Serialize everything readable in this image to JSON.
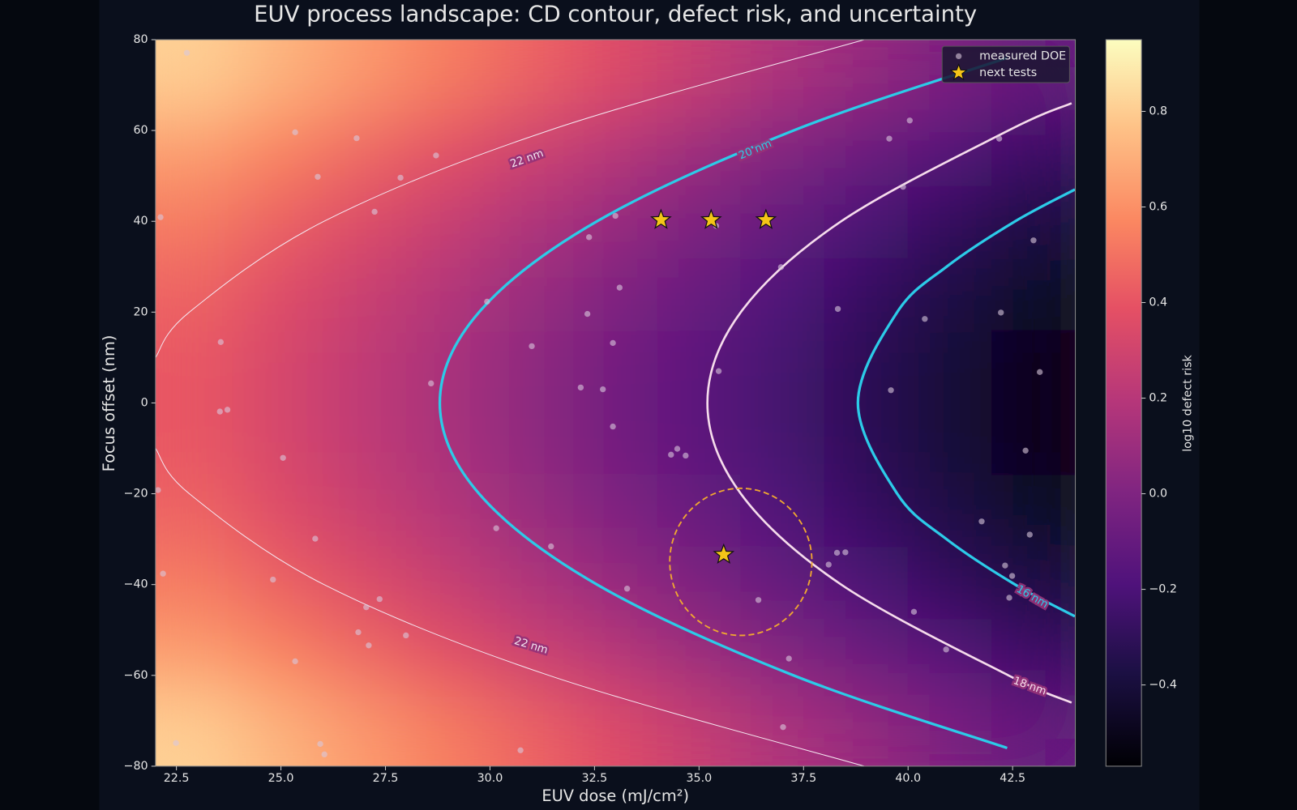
{
  "chart_data": {
    "type": "contour",
    "title": "EUV process landscape: CD contour, defect risk, and uncertainty",
    "x_label": "EUV dose (mJ/cm²)",
    "y_label": "Focus offset (nm)",
    "xlim": [
      22,
      44
    ],
    "ylim": [
      -80,
      80
    ],
    "xticks": [
      22.5,
      {
        "value": 25,
        "label": "25.0"
      },
      27.5,
      {
        "value": 30,
        "label": "30.0"
      },
      32.5,
      {
        "value": 35,
        "label": "35.0"
      },
      37.5,
      {
        "value": 40,
        "label": "40.0"
      },
      42.5
    ],
    "yticks": [
      {
        "value": -80,
        "label": "−80"
      },
      {
        "value": -60,
        "label": "−60"
      },
      {
        "value": -40,
        "label": "−40"
      },
      {
        "value": -20,
        "label": "−20"
      },
      0,
      20,
      40,
      60,
      80
    ],
    "colormap": "magma",
    "colorbar_label": "log10 defect risk",
    "clim": [
      -0.57,
      0.95
    ],
    "colorbar_ticks": [
      {
        "value": -0.4,
        "label": "−0.4"
      },
      {
        "value": -0.2,
        "label": "−0.2"
      },
      {
        "value": 0,
        "label": "0.0"
      },
      0.2,
      0.4,
      0.6,
      0.8
    ],
    "field": {
      "x": [
        23,
        25,
        27,
        29,
        31,
        33,
        35,
        37,
        39,
        41,
        43
      ],
      "y": [
        72,
        56,
        40,
        24,
        8,
        -8,
        -24,
        -40,
        -56,
        -72
      ],
      "z": [
        [
          0.81,
          0.72,
          0.63,
          0.54,
          0.45,
          0.36,
          0.26,
          0.17,
          0.08,
          -0.01,
          -0.1
        ],
        [
          0.65,
          0.56,
          0.47,
          0.38,
          0.29,
          0.2,
          0.1,
          0.01,
          -0.08,
          -0.17,
          -0.26
        ],
        [
          0.53,
          0.44,
          0.35,
          0.26,
          0.17,
          0.08,
          -0.02,
          -0.11,
          -0.2,
          -0.29,
          -0.38
        ],
        [
          0.45,
          0.36,
          0.27,
          0.18,
          0.09,
          0.0,
          -0.1,
          -0.19,
          -0.28,
          -0.37,
          -0.46
        ],
        [
          0.41,
          0.32,
          0.23,
          0.14,
          0.05,
          -0.05,
          -0.14,
          -0.23,
          -0.32,
          -0.41,
          -0.5
        ],
        [
          0.41,
          0.32,
          0.23,
          0.14,
          0.05,
          -0.05,
          -0.14,
          -0.23,
          -0.32,
          -0.41,
          -0.5
        ],
        [
          0.45,
          0.36,
          0.27,
          0.18,
          0.09,
          0.0,
          -0.1,
          -0.19,
          -0.28,
          -0.37,
          -0.46
        ],
        [
          0.53,
          0.44,
          0.35,
          0.26,
          0.17,
          0.08,
          -0.02,
          -0.11,
          -0.2,
          -0.29,
          -0.38
        ],
        [
          0.65,
          0.56,
          0.47,
          0.38,
          0.29,
          0.2,
          0.1,
          0.01,
          -0.08,
          -0.17,
          -0.26
        ],
        [
          0.81,
          0.72,
          0.63,
          0.54,
          0.45,
          0.36,
          0.26,
          0.17,
          0.08,
          -0.01,
          -0.1
        ]
      ]
    },
    "contours": [
      {
        "label": "22 nm",
        "color": "#f4e6f0",
        "width": 1,
        "x": [
          38.95,
          31.41,
          26.03,
          22.81,
          22.0,
          null,
          22.0,
          22.81,
          26.03,
          31.41,
          38.95
        ],
        "y": [
          80,
          60,
          40,
          20,
          10,
          null,
          -10,
          -20,
          -40,
          -60,
          -80
        ]
      },
      {
        "label": "20 nm",
        "color": "#2ccbe8",
        "width": 3.2,
        "x": [
          42.37,
          37.26,
          32.56,
          29.74,
          28.8,
          29.74,
          32.56,
          37.26,
          42.37
        ],
        "y": [
          76,
          60,
          40,
          20,
          0,
          -20,
          -40,
          -60,
          -76
        ]
      },
      {
        "label": "18 nm",
        "color": "#f6dcec",
        "width": 2.6,
        "x": [
          43.91,
          42.4,
          38.4,
          36.0,
          35.2,
          36.0,
          38.4,
          42.4,
          43.91
        ],
        "y": [
          66,
          60,
          40,
          20,
          0,
          -20,
          -40,
          -60,
          -66
        ]
      },
      {
        "label": "16 nm",
        "color": "#2ccbe8",
        "width": 3.2,
        "x": [
          43.99,
          42.56,
          40.92,
          39.74,
          38.8,
          39.74,
          40.92,
          42.56,
          43.99
        ],
        "y": [
          47,
          40,
          30,
          20,
          0,
          -20,
          -30,
          -40,
          -47
        ]
      }
    ],
    "uncertainty": {
      "x": 36.0,
      "y": -35.0,
      "rx": 1.7,
      "ry": 16.2,
      "color": "#f0a830"
    },
    "series": [
      {
        "name": "measured DOE",
        "color": "#d8c8dc",
        "x": [
          22.75,
          25.34,
          26.81,
          28.71,
          25.88,
          27.86,
          27.24,
          22.12,
          33.0,
          32.37,
          35.41,
          33.1,
          29.93,
          32.33,
          31.0,
          32.94,
          23.56,
          35.47,
          28.59,
          32.17,
          32.7,
          32.94,
          23.54,
          23.72,
          25.05,
          34.33,
          34.48,
          34.68,
          22.06,
          25.82,
          30.15,
          31.46,
          22.18,
          24.81,
          27.36,
          27.04,
          26.85,
          27.1,
          27.99,
          25.34,
          33.28,
          36.42,
          37.15,
          37.01,
          30.73,
          22.49,
          25.94,
          26.04,
          38.1,
          38.3,
          38.5,
          40.14,
          40.91,
          41.76,
          42.32,
          42.49,
          42.42,
          42.91,
          42.81,
          43.15,
          39.59,
          38.32,
          40.4,
          42.22,
          43.0,
          36.96,
          39.55,
          40.04,
          39.88,
          42.18
        ],
        "values": [
          77.1,
          59.6,
          58.3,
          54.5,
          49.8,
          49.6,
          42.1,
          40.9,
          41.2,
          36.5,
          39.0,
          25.4,
          22.3,
          19.6,
          12.5,
          13.2,
          13.4,
          7.0,
          4.3,
          3.4,
          3.0,
          -5.2,
          -1.9,
          -1.5,
          -12.1,
          -11.4,
          -10.1,
          -11.6,
          -19.2,
          -29.9,
          -27.6,
          -31.6,
          -37.6,
          -38.9,
          -43.2,
          -45.0,
          -50.5,
          -53.4,
          -51.2,
          -56.9,
          -40.9,
          -43.4,
          -56.3,
          -71.4,
          -76.5,
          -74.9,
          -75.1,
          -77.4,
          -35.6,
          -33.0,
          -32.9,
          -46.0,
          -54.3,
          -26.1,
          -35.8,
          -38.1,
          -42.9,
          -29.0,
          -10.5,
          6.8,
          2.8,
          20.7,
          18.5,
          19.9,
          35.8,
          29.9,
          58.2,
          62.2,
          47.6,
          58.2
        ]
      },
      {
        "name": "next tests",
        "color": "#f5c518",
        "x": [
          34.09,
          35.29,
          36.6,
          35.59
        ],
        "values": [
          40.3,
          40.3,
          40.3,
          -33.4
        ]
      }
    ]
  }
}
